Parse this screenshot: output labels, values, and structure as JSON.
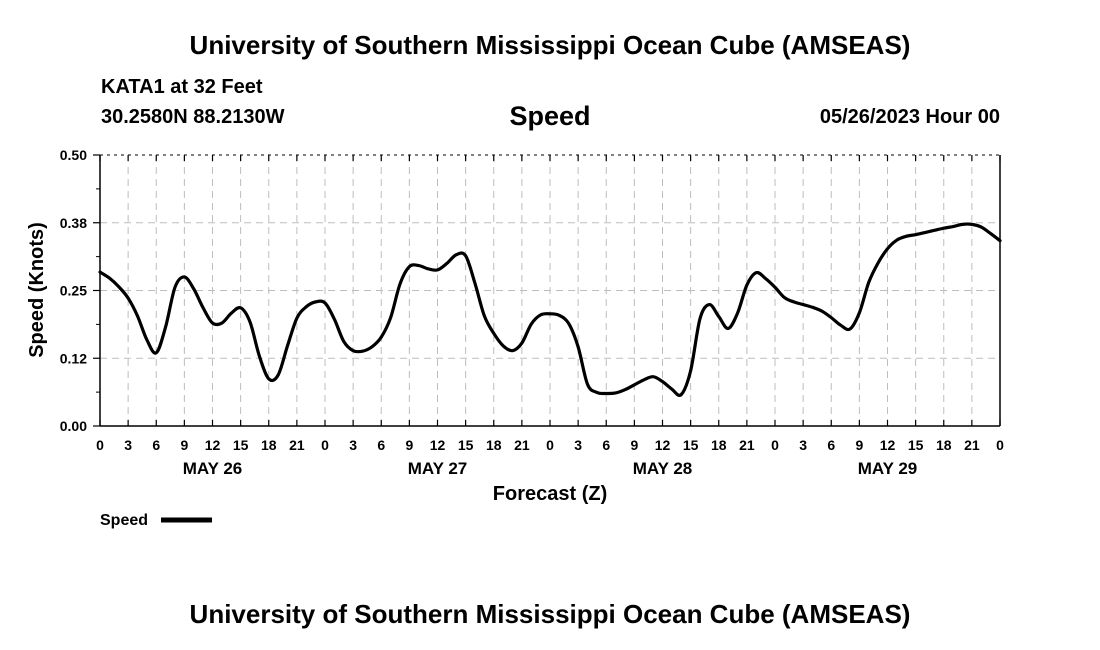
{
  "header": {
    "title": "University of Southern Mississippi Ocean Cube (AMSEAS)",
    "station": "KATA1 at 32 Feet",
    "coords": "30.2580N  88.2130W",
    "chart_title": "Speed",
    "date": "05/26/2023 Hour 00",
    "footer_title": "University of Southern Mississippi Ocean Cube (AMSEAS)"
  },
  "chart_data": {
    "type": "line",
    "title": "Speed",
    "xlabel": "Forecast (Z)",
    "ylabel": "Speed (Knots)",
    "ylim": [
      0,
      0.5
    ],
    "xlim": [
      0,
      96
    ],
    "yticks": [
      0.0,
      0.125,
      0.25,
      0.375,
      0.5
    ],
    "ytick_labels": [
      "0.00",
      "0.12",
      "0.25",
      "0.38",
      "0.50"
    ],
    "xticks": [
      0,
      3,
      6,
      9,
      12,
      15,
      18,
      21,
      24,
      27,
      30,
      33,
      36,
      39,
      42,
      45,
      48,
      51,
      54,
      57,
      60,
      63,
      66,
      69,
      72,
      75,
      78,
      81,
      84,
      87,
      90,
      93,
      96
    ],
    "xtick_labels": [
      "0",
      "3",
      "6",
      "9",
      "12",
      "15",
      "18",
      "21",
      "0",
      "3",
      "6",
      "9",
      "12",
      "15",
      "18",
      "21",
      "0",
      "3",
      "6",
      "9",
      "12",
      "15",
      "18",
      "21",
      "0",
      "3",
      "6",
      "9",
      "12",
      "15",
      "18",
      "21",
      "0"
    ],
    "day_labels": [
      {
        "label": "MAY 26",
        "x": 12
      },
      {
        "label": "MAY 27",
        "x": 36
      },
      {
        "label": "MAY 28",
        "x": 60
      },
      {
        "label": "MAY 29",
        "x": 84
      }
    ],
    "grid": true,
    "legend": [
      {
        "name": "Speed",
        "position": "bottom-left"
      }
    ],
    "series": [
      {
        "name": "Speed",
        "x": [
          0,
          1,
          2,
          3,
          4,
          5,
          6,
          7,
          8,
          9,
          10,
          11,
          12,
          13,
          14,
          15,
          16,
          17,
          18,
          19,
          20,
          21,
          22,
          23,
          24,
          25,
          26,
          27,
          28,
          29,
          30,
          31,
          32,
          33,
          34,
          35,
          36,
          37,
          38,
          39,
          40,
          41,
          42,
          43,
          44,
          45,
          46,
          47,
          48,
          49,
          50,
          51,
          52,
          53,
          54,
          55,
          56,
          57,
          58,
          59,
          60,
          61,
          62,
          63,
          64,
          65,
          66,
          67,
          68,
          69,
          70,
          71,
          72,
          73,
          74,
          75,
          76,
          77,
          78,
          79,
          80,
          81,
          82,
          83,
          84,
          85,
          86,
          87,
          88,
          89,
          90,
          91,
          92,
          93,
          94,
          95,
          96
        ],
        "values": [
          0.284,
          0.273,
          0.257,
          0.236,
          0.203,
          0.159,
          0.135,
          0.183,
          0.256,
          0.275,
          0.253,
          0.218,
          0.19,
          0.19,
          0.208,
          0.218,
          0.192,
          0.129,
          0.087,
          0.094,
          0.148,
          0.199,
          0.22,
          0.229,
          0.227,
          0.197,
          0.156,
          0.139,
          0.138,
          0.146,
          0.164,
          0.2,
          0.262,
          0.294,
          0.296,
          0.29,
          0.288,
          0.3,
          0.316,
          0.314,
          0.263,
          0.203,
          0.171,
          0.148,
          0.139,
          0.153,
          0.188,
          0.205,
          0.207,
          0.204,
          0.189,
          0.146,
          0.077,
          0.062,
          0.06,
          0.061,
          0.067,
          0.076,
          0.085,
          0.091,
          0.082,
          0.068,
          0.058,
          0.102,
          0.198,
          0.224,
          0.202,
          0.18,
          0.208,
          0.26,
          0.283,
          0.272,
          0.256,
          0.237,
          0.229,
          0.224,
          0.219,
          0.212,
          0.2,
          0.186,
          0.179,
          0.209,
          0.265,
          0.301,
          0.327,
          0.343,
          0.35,
          0.353,
          0.357,
          0.361,
          0.365,
          0.368,
          0.372,
          0.372,
          0.367,
          0.355,
          0.342
        ]
      }
    ]
  }
}
